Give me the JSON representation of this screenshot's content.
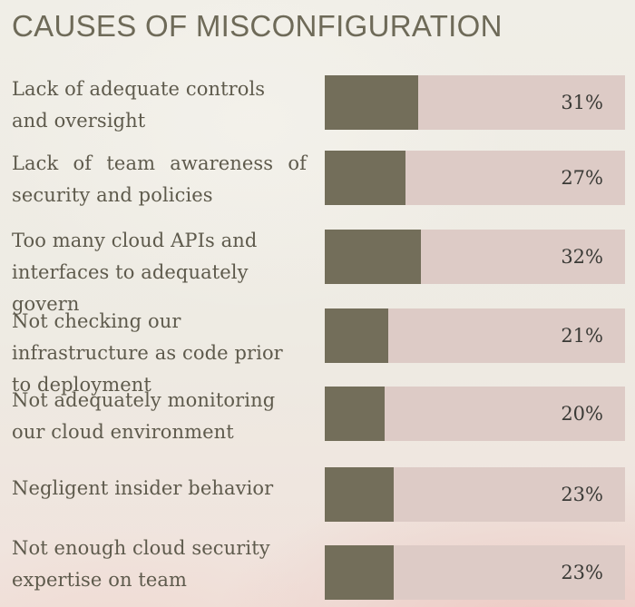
{
  "chart_data": {
    "type": "bar",
    "orientation": "horizontal",
    "title": "CAUSES OF MISCONFIGURATION",
    "categories": [
      "Lack of adequate controls and oversight",
      "Lack of team awareness of security and policies",
      "Too many cloud APIs and interfaces to adequately govern",
      "Not checking our infrastructure as code prior to deployment",
      "Not adequately monitoring our cloud environment",
      "Negligent insider behavior",
      "Not enough cloud security expertise on team"
    ],
    "values": [
      31,
      27,
      32,
      21,
      20,
      23,
      23
    ],
    "value_labels": [
      "31%",
      "27%",
      "32%",
      "21%",
      "20%",
      "23%",
      "23%"
    ],
    "xlim": [
      0,
      100
    ],
    "unit": "%",
    "grid": false,
    "legend": "none"
  },
  "colors": {
    "bar_fill": "#736e5a",
    "bar_track": "#ddcbc6",
    "title_text": "#6e6a58",
    "label_text": "#5e5a4c",
    "value_text": "#3a3a36"
  }
}
